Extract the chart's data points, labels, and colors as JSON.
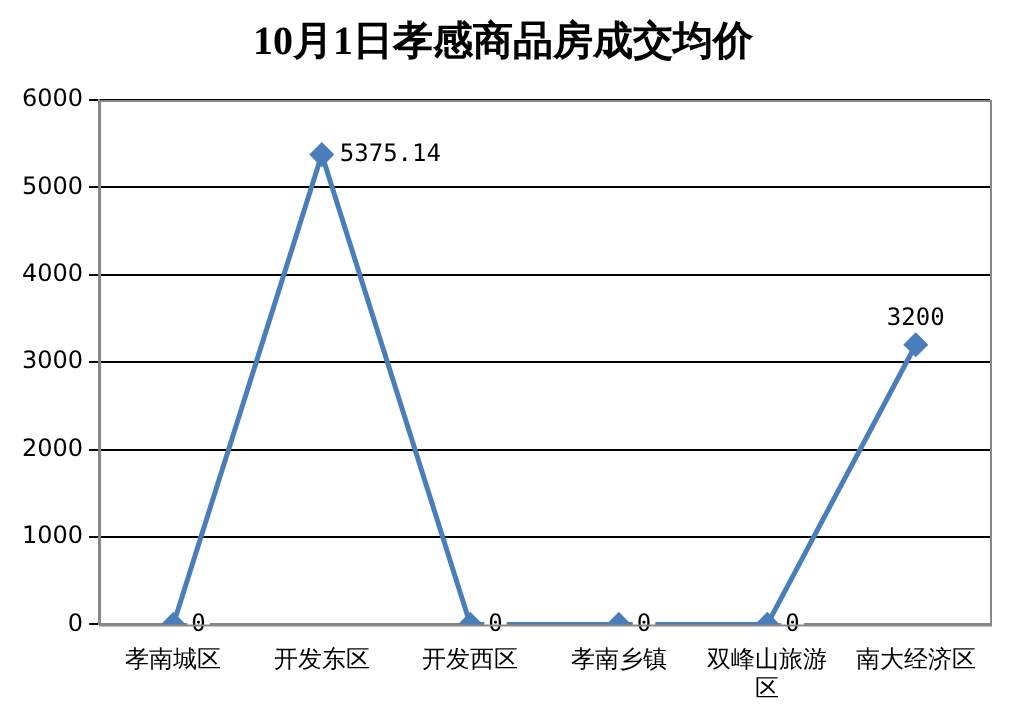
{
  "chart_data": {
    "type": "line",
    "title": "10月1日孝感商品房成交均价",
    "categories": [
      "孝南城区",
      "开发东区",
      "开发西区",
      "孝南乡镇",
      "双峰山旅游区",
      "南大经济区"
    ],
    "series": [
      {
        "color": "#4a7ebb",
        "values": [
          0,
          5375.14,
          0,
          0,
          0,
          3200
        ]
      }
    ],
    "ylim": [
      0,
      6000
    ],
    "yticks": [
      0,
      1000,
      2000,
      3000,
      4000,
      5000,
      6000
    ],
    "grid": "y",
    "legend": false,
    "marker": "diamond",
    "line_style": "solid",
    "data_labels": true
  }
}
